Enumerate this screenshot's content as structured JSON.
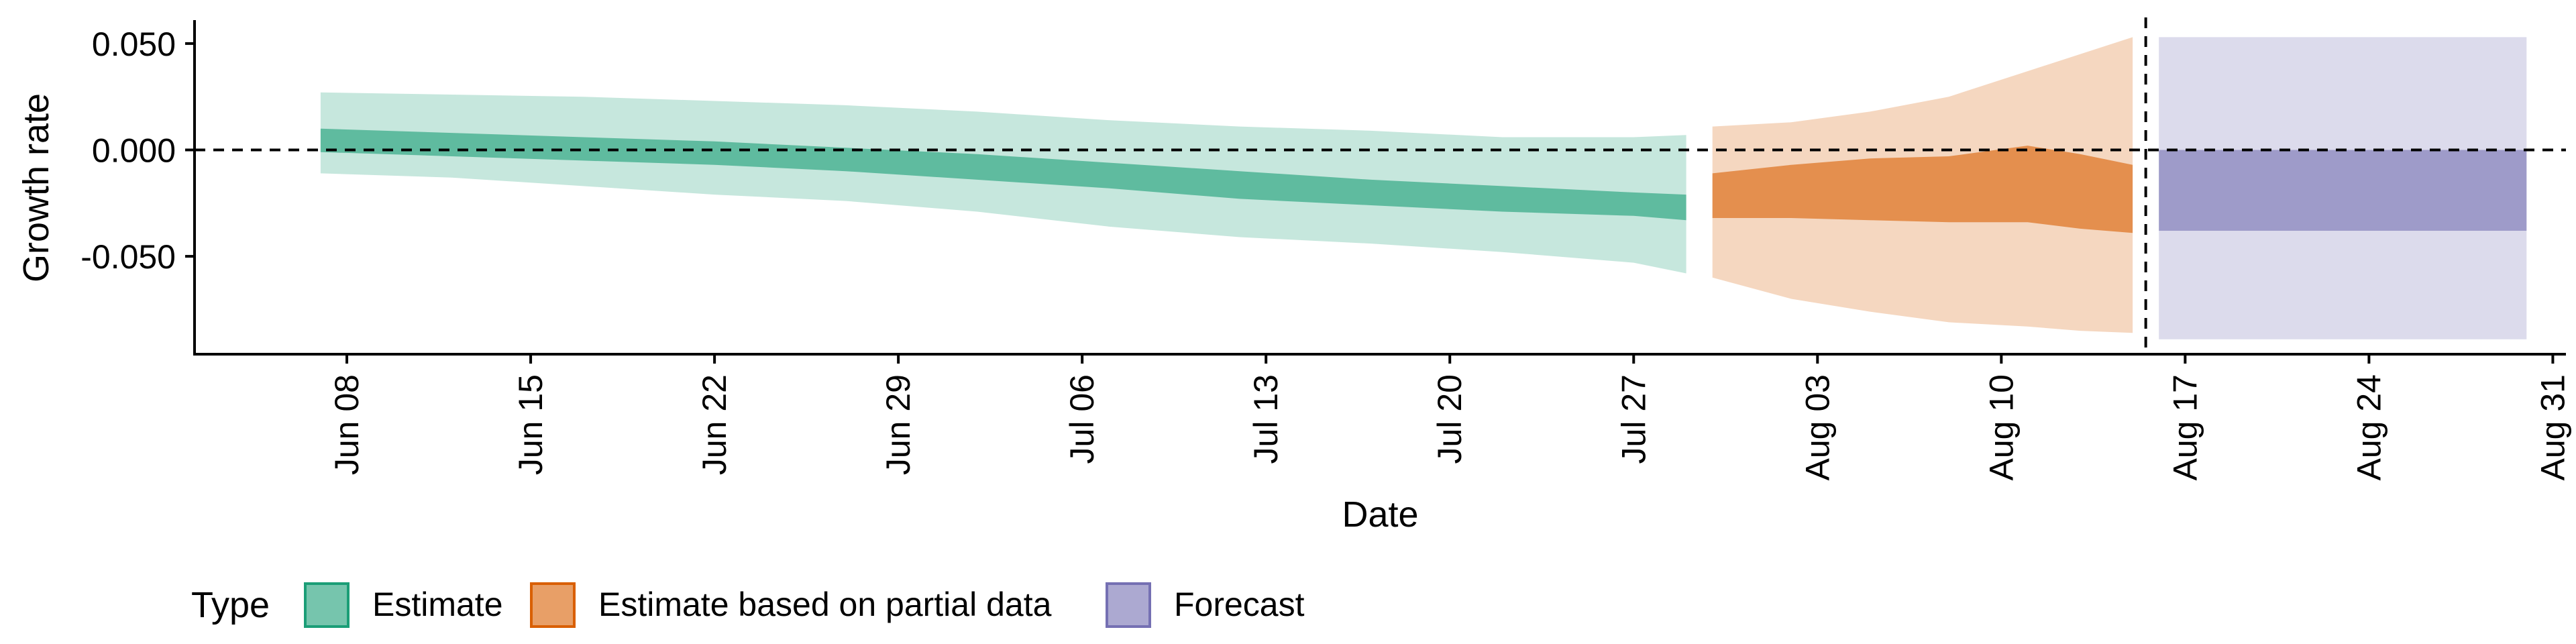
{
  "chart_data": {
    "type": "area",
    "xlabel": "Date",
    "ylabel": "Growth rate",
    "ylim": [
      -0.096,
      0.061
    ],
    "y_ticks": [
      0.05,
      0.0,
      -0.05
    ],
    "y_tick_labels": [
      "0.050",
      "0.000",
      "-0.050"
    ],
    "x_range_days": [
      -4.8,
      85.5
    ],
    "x_ticks": [
      1,
      8,
      15,
      22,
      29,
      36,
      43,
      50,
      57,
      64,
      71,
      78,
      85
    ],
    "x_tick_labels": [
      "Jun 08",
      "Jun 15",
      "Jun 22",
      "Jun 29",
      "Jul 06",
      "Jul 13",
      "Jul 20",
      "Jul 27",
      "Aug 03",
      "Aug 10",
      "Aug 17",
      "Aug 24",
      "Aug 31"
    ],
    "x_unit_note": "days since Jun 07",
    "reference_lines": {
      "hline_y": 0.0,
      "vline_day": 69.5
    },
    "legend": {
      "title": "Type",
      "position": "bottom-left",
      "items": [
        {
          "label": "Estimate",
          "color": "#1b9e77"
        },
        {
          "label": "Estimate based on partial data",
          "color": "#d95f02"
        },
        {
          "label": "Forecast",
          "color": "#7570b3"
        }
      ]
    },
    "series": [
      {
        "name": "Estimate",
        "color": "#1b9e77",
        "x": [
          0,
          5,
          10,
          15,
          20,
          25,
          30,
          35,
          40,
          45,
          50,
          52
        ],
        "outer_upper": [
          0.027,
          0.026,
          0.025,
          0.023,
          0.021,
          0.018,
          0.014,
          0.011,
          0.009,
          0.006,
          0.006,
          0.007
        ],
        "inner_upper": [
          0.01,
          0.008,
          0.006,
          0.004,
          0.001,
          -0.002,
          -0.006,
          -0.01,
          -0.014,
          -0.017,
          -0.02,
          -0.021
        ],
        "inner_lower": [
          -0.001,
          -0.003,
          -0.005,
          -0.007,
          -0.01,
          -0.014,
          -0.018,
          -0.023,
          -0.026,
          -0.029,
          -0.031,
          -0.033
        ],
        "outer_lower": [
          -0.011,
          -0.013,
          -0.017,
          -0.021,
          -0.024,
          -0.029,
          -0.036,
          -0.041,
          -0.044,
          -0.048,
          -0.053,
          -0.058
        ]
      },
      {
        "name": "Estimate based on partial data",
        "color": "#d95f02",
        "x": [
          53,
          56,
          59,
          62,
          65,
          67,
          69
        ],
        "outer_upper": [
          0.011,
          0.013,
          0.018,
          0.025,
          0.037,
          0.045,
          0.053
        ],
        "inner_upper": [
          -0.011,
          -0.007,
          -0.004,
          -0.003,
          0.002,
          -0.002,
          -0.007
        ],
        "inner_lower": [
          -0.032,
          -0.032,
          -0.033,
          -0.034,
          -0.034,
          -0.037,
          -0.039
        ],
        "outer_lower": [
          -0.06,
          -0.07,
          -0.076,
          -0.081,
          -0.083,
          -0.085,
          -0.086
        ]
      },
      {
        "name": "Forecast",
        "color": "#7570b3",
        "x": [
          70,
          84
        ],
        "outer_upper": [
          0.053,
          0.053
        ],
        "inner_upper": [
          0.0,
          0.0
        ],
        "inner_lower": [
          -0.038,
          -0.038
        ],
        "outer_lower": [
          -0.089,
          -0.089
        ]
      }
    ]
  }
}
